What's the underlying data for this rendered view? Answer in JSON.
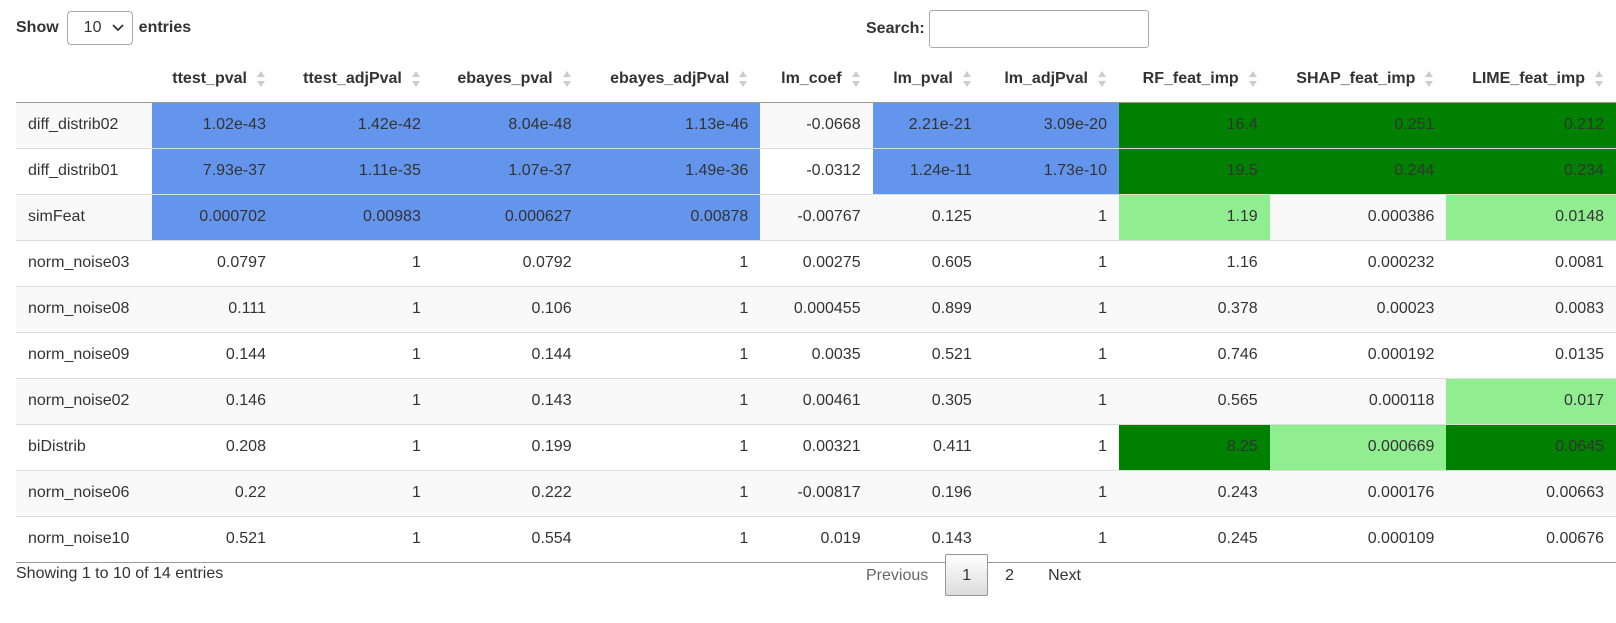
{
  "length": {
    "show_label": "Show",
    "selected": "10",
    "entries_label": "entries"
  },
  "search": {
    "label": "Search:",
    "value": ""
  },
  "colors": {
    "pval_highlight": "#6495ED",
    "imp_high": "#008000",
    "imp_low": "#90EE90",
    "striped_row": "#f9f9f9"
  },
  "table": {
    "columns": [
      "",
      "ttest_pval",
      "ttest_adjPval",
      "ebayes_pval",
      "ebayes_adjPval",
      "lm_coef",
      "lm_pval",
      "lm_adjPval",
      "RF_feat_imp",
      "SHAP_feat_imp",
      "LIME_feat_imp"
    ],
    "rows": [
      {
        "cells": [
          "diff_distrib02",
          "1.02e-43",
          "1.42e-42",
          "8.04e-48",
          "1.13e-46",
          "-0.0668",
          "2.21e-21",
          "3.09e-20",
          "16.4",
          "0.251",
          "0.212"
        ],
        "highlight": [
          "",
          "blue",
          "blue",
          "blue",
          "blue",
          "",
          "blue",
          "blue",
          "dark",
          "dark",
          "dark"
        ]
      },
      {
        "cells": [
          "diff_distrib01",
          "7.93e-37",
          "1.11e-35",
          "1.07e-37",
          "1.49e-36",
          "-0.0312",
          "1.24e-11",
          "1.73e-10",
          "19.5",
          "0.244",
          "0.234"
        ],
        "highlight": [
          "",
          "blue",
          "blue",
          "blue",
          "blue",
          "",
          "blue",
          "blue",
          "dark",
          "dark",
          "dark"
        ]
      },
      {
        "cells": [
          "simFeat",
          "0.000702",
          "0.00983",
          "0.000627",
          "0.00878",
          "-0.00767",
          "0.125",
          "1",
          "1.19",
          "0.000386",
          "0.0148"
        ],
        "highlight": [
          "",
          "blue",
          "blue",
          "blue",
          "blue",
          "",
          "",
          "",
          "light",
          "",
          "light"
        ]
      },
      {
        "cells": [
          "norm_noise03",
          "0.0797",
          "1",
          "0.0792",
          "1",
          "0.00275",
          "0.605",
          "1",
          "1.16",
          "0.000232",
          "0.0081"
        ],
        "highlight": [
          "",
          "",
          "",
          "",
          "",
          "",
          "",
          "",
          "",
          "",
          ""
        ]
      },
      {
        "cells": [
          "norm_noise08",
          "0.111",
          "1",
          "0.106",
          "1",
          "0.000455",
          "0.899",
          "1",
          "0.378",
          "0.00023",
          "0.0083"
        ],
        "highlight": [
          "",
          "",
          "",
          "",
          "",
          "",
          "",
          "",
          "",
          "",
          ""
        ]
      },
      {
        "cells": [
          "norm_noise09",
          "0.144",
          "1",
          "0.144",
          "1",
          "0.0035",
          "0.521",
          "1",
          "0.746",
          "0.000192",
          "0.0135"
        ],
        "highlight": [
          "",
          "",
          "",
          "",
          "",
          "",
          "",
          "",
          "",
          "",
          ""
        ]
      },
      {
        "cells": [
          "norm_noise02",
          "0.146",
          "1",
          "0.143",
          "1",
          "0.00461",
          "0.305",
          "1",
          "0.565",
          "0.000118",
          "0.017"
        ],
        "highlight": [
          "",
          "",
          "",
          "",
          "",
          "",
          "",
          "",
          "",
          "",
          "light"
        ]
      },
      {
        "cells": [
          "biDistrib",
          "0.208",
          "1",
          "0.199",
          "1",
          "0.00321",
          "0.411",
          "1",
          "8.25",
          "0.000669",
          "0.0645"
        ],
        "highlight": [
          "",
          "",
          "",
          "",
          "",
          "",
          "",
          "",
          "dark",
          "light",
          "dark"
        ]
      },
      {
        "cells": [
          "norm_noise06",
          "0.22",
          "1",
          "0.222",
          "1",
          "-0.00817",
          "0.196",
          "1",
          "0.243",
          "0.000176",
          "0.00663"
        ],
        "highlight": [
          "",
          "",
          "",
          "",
          "",
          "",
          "",
          "",
          "",
          "",
          ""
        ]
      },
      {
        "cells": [
          "norm_noise10",
          "0.521",
          "1",
          "0.554",
          "1",
          "0.019",
          "0.143",
          "1",
          "0.245",
          "0.000109",
          "0.00676"
        ],
        "highlight": [
          "",
          "",
          "",
          "",
          "",
          "",
          "",
          "",
          "",
          "",
          ""
        ]
      }
    ]
  },
  "info": "Showing 1 to 10 of 14 entries",
  "pagination": {
    "previous": "Previous",
    "pages": [
      "1",
      "2"
    ],
    "current": "1",
    "next": "Next"
  }
}
